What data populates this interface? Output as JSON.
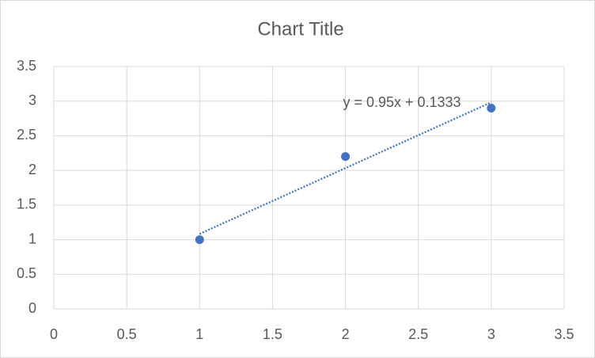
{
  "chart_data": {
    "type": "scatter",
    "title": "Chart Title",
    "series": [
      {
        "color": "#4472c4",
        "x": [
          1,
          2,
          3
        ],
        "values": [
          1,
          2.2,
          2.9
        ]
      }
    ],
    "trendline": {
      "slope": 0.95,
      "intercept": 0.1333,
      "label": "y = 0.95x + 0.1333"
    },
    "xlim": [
      0,
      3.5
    ],
    "xticks": [
      0,
      0.5,
      1,
      1.5,
      2,
      2.5,
      3,
      3.5
    ],
    "ylim": [
      0,
      3.5
    ],
    "yticks": [
      0,
      0.5,
      1,
      1.5,
      2,
      2.5,
      3,
      3.5
    ],
    "grid": true
  }
}
